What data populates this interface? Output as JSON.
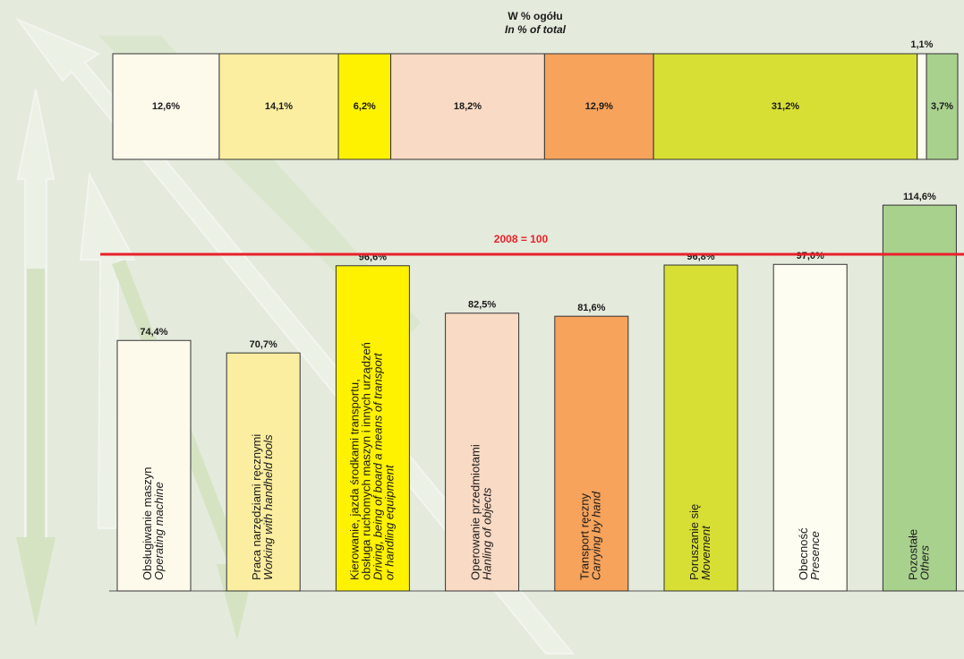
{
  "chart_data": [
    {
      "type": "stacked_bar",
      "title": "W % ogółu",
      "subtitle": "In % of total",
      "values": [
        12.6,
        14.1,
        6.2,
        18.2,
        12.9,
        31.2,
        1.1,
        3.7
      ],
      "value_labels": [
        "12,6%",
        "14,1%",
        "6,2%",
        "18,2%",
        "12,9%",
        "31,2%",
        "1,1%",
        "3,7%"
      ],
      "colors": [
        "#fefaeb",
        "#fbeea0",
        "#fff200",
        "#f9dac4",
        "#f7a35c",
        "#d7df34",
        "#fdfdf2",
        "#a9d18e"
      ],
      "xlim": [
        0,
        100
      ]
    },
    {
      "type": "bar",
      "categories": [
        [
          "Obsługiwanie maszyn"
        ],
        [
          "Praca narzędziami ręcznymi"
        ],
        [
          "Kierowanie, jazda środkami transportu,",
          "obsługa ruchomych maszyn i innych urządzeń"
        ],
        [
          "Operowanie przedmiotami"
        ],
        [
          "Transport ręczny"
        ],
        [
          "Poruszanie się"
        ],
        [
          "Obecność"
        ],
        [
          "Pozostałe"
        ]
      ],
      "translations": [
        [
          "Operating machine"
        ],
        [
          "Working with handheld tools"
        ],
        [
          "Driving, being of board a means of transport",
          "or handling equipment"
        ],
        [
          "Hanling of objects"
        ],
        [
          "Carrying by hand"
        ],
        [
          "Movement"
        ],
        [
          "Presence"
        ],
        [
          "Others"
        ]
      ],
      "values": [
        74.4,
        70.7,
        96.6,
        82.5,
        81.6,
        96.8,
        97.0,
        114.6
      ],
      "value_labels": [
        "74,4%",
        "70,7%",
        "96,6%",
        "82,5%",
        "81,6%",
        "96,8%",
        "97,0%",
        "114,6%"
      ],
      "colors": [
        "#fefaeb",
        "#fbeea0",
        "#fff200",
        "#f9dac4",
        "#f7a35c",
        "#d7df34",
        "#fdfdf2",
        "#a9d18e"
      ],
      "ylim": [
        0,
        120
      ],
      "reference_line": {
        "value": 100,
        "label": "2008 = 100",
        "color": "#e8202a"
      }
    }
  ]
}
